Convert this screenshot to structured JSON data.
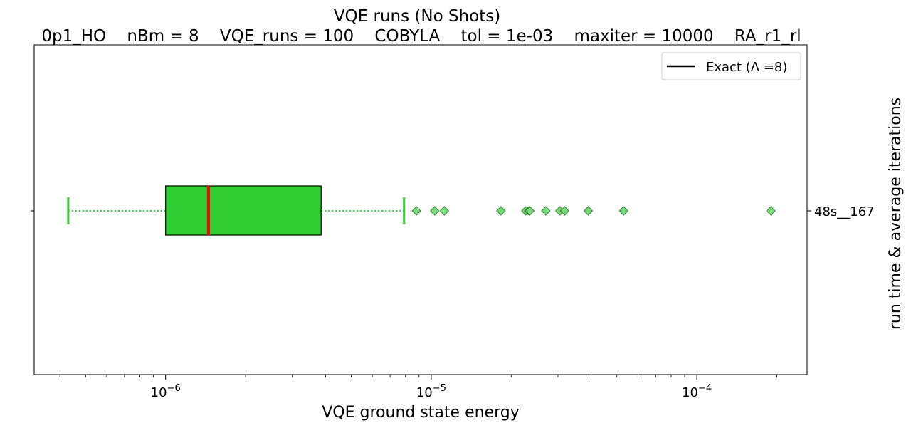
{
  "chart_data": {
    "type": "boxplot",
    "orientation": "horizontal",
    "title": "VQE runs (No Shots)",
    "subtitle": "0p1_HO    nBm = 8    VQE_runs = 100    COBYLA    tol = 1e-03    maxiter = 10000    RA_r1_rl",
    "xlabel": "VQE ground state energy",
    "ylabel_right": "run time & average iterations",
    "xscale": "log",
    "xlim": [
      3.2e-07,
      0.00026
    ],
    "x_major_ticks": [
      {
        "value": 1e-06,
        "base": "10",
        "exp": "−6"
      },
      {
        "value": 1e-05,
        "base": "10",
        "exp": "−5"
      },
      {
        "value": 0.0001,
        "base": "10",
        "exp": "−4"
      }
    ],
    "categories": [
      "48s__167"
    ],
    "series": [
      {
        "whisker_low": 4.3e-07,
        "q1": 1e-06,
        "median": 1.45e-06,
        "q3": 3.85e-06,
        "whisker_high": 7.9e-06,
        "outliers": [
          8.8e-06,
          1.03e-05,
          1.12e-05,
          1.83e-05,
          2.27e-05,
          2.33e-05,
          2.35e-05,
          2.7e-05,
          3.05e-05,
          3.18e-05,
          3.9e-05,
          5.3e-05,
          0.00019
        ]
      }
    ],
    "legend": {
      "label": "Exact (Λ =8)",
      "position": "top-right"
    },
    "colors": {
      "box_fill": "#32cd32",
      "median": "#ff0000",
      "whisker": "#32cd32",
      "outlier_fill": "#7ed67e",
      "outlier_edge": "#2a8a2a",
      "exact_line": "#000000"
    },
    "grid": false
  }
}
